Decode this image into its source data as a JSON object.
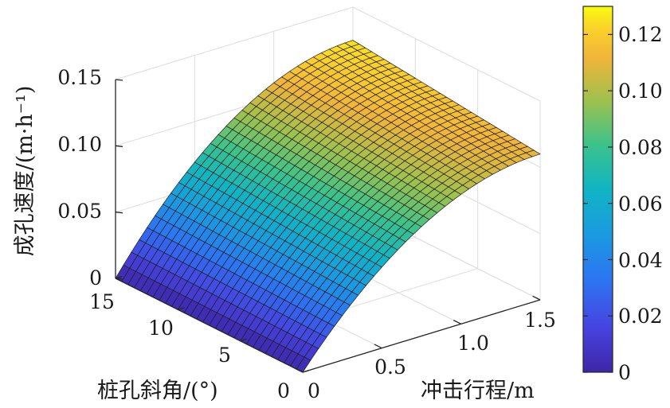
{
  "chart_data": {
    "type": "surface",
    "zlabel": "成孔速度/(m·h⁻¹)",
    "xlabel": "冲击行程/m",
    "ylabel": "桩孔斜角/(°)",
    "zlim": [
      0,
      0.15
    ],
    "z_ticks": [
      "0",
      "0.05",
      "0.10",
      "0.15"
    ],
    "x_ticks": [
      "0",
      "0.5",
      "1.0",
      "1.5"
    ],
    "y_ticks": [
      "15",
      "10",
      "5",
      "0"
    ],
    "xlim": [
      0,
      1.5
    ],
    "ylim": [
      0,
      15
    ],
    "colorbar": {
      "range": [
        0,
        0.13
      ],
      "ticks": [
        "0",
        "0.02",
        "0.04",
        "0.06",
        "0.08",
        "0.10",
        "0.12"
      ],
      "colormap": "parula"
    },
    "surface_corners": [
      {
        "x": 0,
        "y": 15,
        "z": 0
      },
      {
        "x": 0,
        "y": 0,
        "z": 0
      },
      {
        "x": 1.5,
        "y": 15,
        "z": 0.125
      },
      {
        "x": 1.5,
        "y": 0,
        "z": 0.11
      }
    ],
    "grid": true
  }
}
